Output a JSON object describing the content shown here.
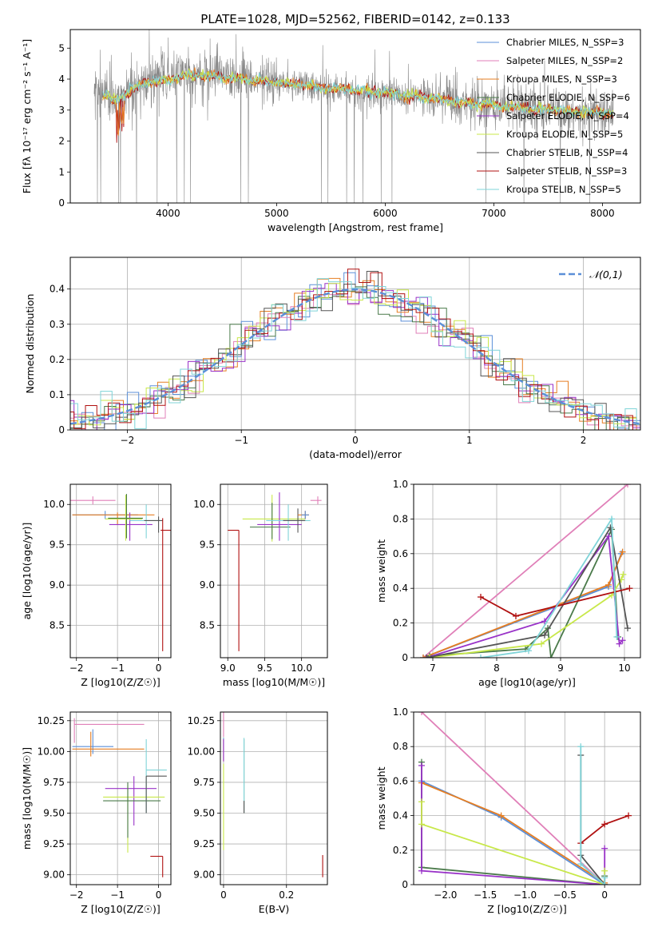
{
  "figure": {
    "title": "PLATE=1028, MJD=52562, FIBERID=0142, z=0.133"
  },
  "colors": {
    "chabrier_miles": "#5b8fd8",
    "salpeter_miles": "#e07fb8",
    "kroupa_miles": "#e67e22",
    "chabrier_elodie": "#4a7a4a",
    "salpeter_elodie": "#9932c8",
    "kroupa_elodie": "#c8e84a",
    "chabrier_stelib": "#555555",
    "salpeter_stelib": "#b01010",
    "kroupa_stelib": "#7fd4d8",
    "data": "#888888",
    "normal": "#5b8fd8"
  },
  "chart_data": [
    {
      "id": "spectrum",
      "type": "line",
      "title": "PLATE=1028, MJD=52562, FIBERID=0142, z=0.133",
      "xlabel": "wavelength [Angstrom, rest frame]",
      "ylabel": "Flux [fλ 10⁻¹⁷ erg cm⁻² s⁻¹ A⁻¹]",
      "xlim": [
        3100,
        8350
      ],
      "ylim": [
        0,
        5.6
      ],
      "xticks": [
        4000,
        5000,
        6000,
        7000,
        8000
      ],
      "yticks": [
        0,
        1,
        2,
        3,
        4,
        5
      ],
      "grid": false,
      "legend_position": "top-right",
      "continuum": {
        "x": [
          3320,
          3500,
          3800,
          4000,
          4200,
          4500,
          5000,
          5500,
          6000,
          6500,
          7000,
          7500,
          8100
        ],
        "y": [
          3.65,
          3.3,
          3.95,
          3.95,
          4.15,
          4.05,
          3.9,
          3.7,
          3.55,
          3.35,
          3.15,
          3.0,
          2.9
        ]
      },
      "data_wavelength_range": [
        3320,
        8100
      ],
      "legend": [
        {
          "name": "Chabrier MILES, N_SSP=3",
          "color_key": "chabrier_miles"
        },
        {
          "name": "Salpeter MILES, N_SSP=2",
          "color_key": "salpeter_miles"
        },
        {
          "name": "Kroupa MILES, N_SSP=3",
          "color_key": "kroupa_miles"
        },
        {
          "name": "Chabrier ELODIE, N_SSP=6",
          "color_key": "chabrier_elodie"
        },
        {
          "name": "Salpeter ELODIE, N_SSP=4",
          "color_key": "salpeter_elodie"
        },
        {
          "name": "Kroupa ELODIE, N_SSP=5",
          "color_key": "kroupa_elodie"
        },
        {
          "name": "Chabrier STELIB, N_SSP=4",
          "color_key": "chabrier_stelib"
        },
        {
          "name": "Salpeter STELIB, N_SSP=3",
          "color_key": "salpeter_stelib"
        },
        {
          "name": "Kroupa STELIB, N_SSP=5",
          "color_key": "kroupa_stelib"
        }
      ]
    },
    {
      "id": "residuals",
      "type": "step",
      "xlabel": "(data-model)/error",
      "ylabel": "Normed distribution",
      "xlim": [
        -2.5,
        2.5
      ],
      "ylim": [
        0,
        0.49
      ],
      "xticks": [
        -2,
        -1,
        0,
        1,
        2
      ],
      "yticks": [
        0.0,
        0.1,
        0.2,
        0.3,
        0.4
      ],
      "grid": true,
      "legend_position": "top-right",
      "normal_curve": {
        "name": "𝒩(0,1)",
        "mean": 0,
        "sigma": 1
      },
      "bin_width": 0.1
    },
    {
      "id": "age_vs_Z",
      "type": "errorbar",
      "xlabel": "Z [log10(Z/Z☉)]",
      "ylabel": "age  [log10(age/yr)]",
      "xlim": [
        -2.15,
        0.3
      ],
      "ylim": [
        8.1,
        10.25
      ],
      "xticks": [
        -2,
        -1,
        0
      ],
      "yticks": [
        8.5,
        9.0,
        9.5,
        10.0
      ],
      "grid": true,
      "points": [
        {
          "s": "salpeter_miles",
          "x": -1.6,
          "y": 10.05,
          "xe": [
            0.55,
            0.55
          ],
          "ye": [
            0.05,
            0.05
          ]
        },
        {
          "s": "chabrier_miles",
          "x": -1.3,
          "y": 9.87,
          "xe": [
            0.8,
            0.8
          ],
          "ye": [
            0.05,
            0.05
          ]
        },
        {
          "s": "kroupa_miles",
          "x": -1.0,
          "y": 9.87,
          "xe": [
            1.1,
            0.9
          ],
          "ye": [
            0.12,
            0.03
          ]
        },
        {
          "s": "salpeter_elodie",
          "x": -0.7,
          "y": 9.75,
          "xe": [
            0.5,
            0.55
          ],
          "ye": [
            0.2,
            0.15
          ]
        },
        {
          "s": "kroupa_elodie",
          "x": -0.8,
          "y": 9.82,
          "xe": [
            0.5,
            0.4
          ],
          "ye": [
            0.27,
            0.3
          ]
        },
        {
          "s": "chabrier_elodie",
          "x": -0.78,
          "y": 9.83,
          "xe": [
            0.45,
            0.4
          ],
          "ye": [
            0.25,
            0.3
          ]
        },
        {
          "s": "kroupa_stelib",
          "x": -0.3,
          "y": 9.8,
          "xe": [
            0.4,
            0.35
          ],
          "ye": [
            0.22,
            0.2
          ]
        },
        {
          "s": "chabrier_stelib",
          "x": 0.0,
          "y": 9.8,
          "xe": [
            0.35,
            0.1
          ],
          "ye": [
            0.15,
            0.05
          ]
        },
        {
          "s": "salpeter_stelib",
          "x": 0.1,
          "y": 9.68,
          "xe": [
            0.05,
            0.2
          ],
          "ye": [
            1.5,
            0.15
          ]
        }
      ]
    },
    {
      "id": "age_vs_mass",
      "type": "errorbar",
      "xlabel": "mass [log10(M/M☉)]",
      "ylabel": "",
      "xlim": [
        8.9,
        10.35
      ],
      "ylim": [
        8.1,
        10.25
      ],
      "xticks": [
        9.0,
        9.5,
        10.0
      ],
      "yticks": [
        8.5,
        9.0,
        9.5,
        10.0
      ],
      "grid": true,
      "points": [
        {
          "s": "salpeter_stelib",
          "x": 9.15,
          "y": 9.68,
          "xe": [
            0.15,
            0.0
          ],
          "ye": [
            1.5,
            0.0
          ]
        },
        {
          "s": "kroupa_elodie",
          "x": 9.6,
          "y": 9.82,
          "xe": [
            0.4,
            0.45
          ],
          "ye": [
            0.28,
            0.3
          ]
        },
        {
          "s": "chabrier_elodie",
          "x": 9.6,
          "y": 9.72,
          "xe": [
            0.3,
            0.25
          ],
          "ye": [
            0.15,
            0.3
          ]
        },
        {
          "s": "salpeter_elodie",
          "x": 9.7,
          "y": 9.75,
          "xe": [
            0.3,
            0.3
          ],
          "ye": [
            0.2,
            0.4
          ]
        },
        {
          "s": "kroupa_stelib",
          "x": 9.82,
          "y": 9.8,
          "xe": [
            0.3,
            0.3
          ],
          "ye": [
            0.25,
            0.2
          ]
        },
        {
          "s": "chabrier_stelib",
          "x": 9.95,
          "y": 9.8,
          "xe": [
            0.2,
            0.1
          ],
          "ye": [
            0.15,
            0.15
          ]
        },
        {
          "s": "kroupa_miles",
          "x": 10.05,
          "y": 9.87,
          "xe": [
            0.1,
            0.05
          ],
          "ye": [
            0.05,
            0.05
          ]
        },
        {
          "s": "chabrier_miles",
          "x": 10.05,
          "y": 9.87,
          "xe": [
            0.05,
            0.05
          ],
          "ye": [
            0.05,
            0.05
          ]
        },
        {
          "s": "salpeter_miles",
          "x": 10.22,
          "y": 10.05,
          "xe": [
            0.1,
            0.05
          ],
          "ye": [
            0.05,
            0.05
          ]
        }
      ]
    },
    {
      "id": "weight_vs_age",
      "type": "line",
      "xlabel": "age  [log10(age/yr)]",
      "ylabel": "mass weight",
      "xlim": [
        6.7,
        10.25
      ],
      "ylim": [
        0,
        1.0
      ],
      "xticks": [
        7,
        8,
        9,
        10
      ],
      "yticks": [
        0.0,
        0.2,
        0.4,
        0.6,
        0.8,
        1.0
      ],
      "grid": true,
      "series": [
        {
          "s": "salpeter_miles",
          "x": [
            6.85,
            10.05
          ],
          "y": [
            0.0,
            1.0
          ]
        },
        {
          "s": "chabrier_miles",
          "x": [
            6.85,
            9.75,
            9.95
          ],
          "y": [
            0.0,
            0.41,
            0.6
          ]
        },
        {
          "s": "kroupa_miles",
          "x": [
            6.85,
            9.75,
            9.97
          ],
          "y": [
            0.0,
            0.42,
            0.61
          ]
        },
        {
          "s": "chabrier_elodie",
          "x": [
            6.95,
            8.45,
            8.8,
            8.85,
            9.8,
            9.9
          ],
          "y": [
            0.01,
            0.05,
            0.17,
            0.0,
            0.74,
            0.12
          ]
        },
        {
          "s": "salpeter_elodie",
          "x": [
            6.9,
            8.75,
            9.75,
            9.92,
            9.97
          ],
          "y": [
            0.0,
            0.21,
            0.7,
            0.08,
            0.1
          ]
        },
        {
          "s": "kroupa_elodie",
          "x": [
            6.95,
            8.7,
            9.8,
            9.95,
            9.98
          ],
          "y": [
            0.0,
            0.08,
            0.36,
            0.45,
            0.48
          ]
        },
        {
          "s": "chabrier_stelib",
          "x": [
            6.9,
            8.75,
            9.78,
            10.05
          ],
          "y": [
            0.0,
            0.13,
            0.75,
            0.17
          ]
        },
        {
          "s": "salpeter_stelib",
          "x": [
            7.75,
            8.3,
            10.08
          ],
          "y": [
            0.35,
            0.24,
            0.4
          ]
        },
        {
          "s": "kroupa_stelib",
          "x": [
            7.75,
            8.5,
            9.8,
            9.88
          ],
          "y": [
            0.0,
            0.04,
            0.8,
            0.12
          ]
        }
      ]
    },
    {
      "id": "mass_vs_Z",
      "type": "errorbar",
      "xlabel": "Z [log10(Z/Z☉)]",
      "ylabel": "mass [log10(M/M☉)]",
      "xlim": [
        -2.15,
        0.3
      ],
      "ylim": [
        8.92,
        10.32
      ],
      "xticks": [
        -2,
        -1,
        0
      ],
      "yticks": [
        9.0,
        9.25,
        9.5,
        9.75,
        10.0,
        10.25
      ],
      "grid": true,
      "points": [
        {
          "s": "salpeter_miles",
          "x": -2.05,
          "y": 10.22,
          "xe": [
            0.0,
            1.7
          ],
          "ye": [
            0.15,
            0.05
          ]
        },
        {
          "s": "chabrier_miles",
          "x": -1.6,
          "y": 10.04,
          "xe": [
            0.5,
            0.5
          ],
          "ye": [
            0.06,
            0.14
          ]
        },
        {
          "s": "kroupa_miles",
          "x": -1.65,
          "y": 10.02,
          "xe": [
            0.45,
            1.3
          ],
          "ye": [
            0.06,
            0.14
          ]
        },
        {
          "s": "salpeter_elodie",
          "x": -0.6,
          "y": 9.7,
          "xe": [
            0.7,
            0.55
          ],
          "ye": [
            0.3,
            0.1
          ]
        },
        {
          "s": "kroupa_elodie",
          "x": -0.75,
          "y": 9.63,
          "xe": [
            0.6,
            0.9
          ],
          "ye": [
            0.45,
            0.1
          ]
        },
        {
          "s": "chabrier_elodie",
          "x": -0.75,
          "y": 9.6,
          "xe": [
            0.6,
            0.8
          ],
          "ye": [
            0.3,
            0.15
          ]
        },
        {
          "s": "kroupa_stelib",
          "x": -0.3,
          "y": 9.85,
          "xe": [
            0.0,
            0.5
          ],
          "ye": [
            0.35,
            0.25
          ]
        },
        {
          "s": "chabrier_stelib",
          "x": -0.3,
          "y": 9.8,
          "xe": [
            0.0,
            0.5
          ],
          "ye": [
            0.3,
            0.0
          ]
        },
        {
          "s": "salpeter_stelib",
          "x": 0.1,
          "y": 9.15,
          "xe": [
            0.3,
            0.0
          ],
          "ye": [
            0.17,
            0.0
          ]
        }
      ]
    },
    {
      "id": "mass_vs_EBV",
      "type": "errorbar",
      "xlabel": "E(B-V)",
      "ylabel": "",
      "xlim": [
        -0.01,
        0.33
      ],
      "ylim": [
        8.92,
        10.32
      ],
      "xticks": [
        0.0,
        0.2
      ],
      "yticks": [
        9.0,
        9.25,
        9.5,
        9.75,
        10.0,
        10.25
      ],
      "grid": true,
      "points": [
        {
          "s": "salpeter_miles",
          "x": 0.0,
          "y": 10.22,
          "ye": [
            0.1,
            0.1
          ]
        },
        {
          "s": "chabrier_miles",
          "x": 0.0,
          "y": 10.03,
          "ye": [
            0.1,
            0.08
          ]
        },
        {
          "s": "kroupa_miles",
          "x": 0.0,
          "y": 10.02,
          "ye": [
            0.1,
            0.08
          ]
        },
        {
          "s": "salpeter_elodie",
          "x": 0.0,
          "y": 10.02,
          "ye": [
            0.1,
            0.08
          ]
        },
        {
          "s": "kroupa_elodie",
          "x": 0.0,
          "y": 9.3,
          "ye": [
            0.1,
            0.6
          ]
        },
        {
          "s": "chabrier_elodie",
          "x": 0.065,
          "y": 9.8,
          "ye": [
            0.3,
            0.3
          ]
        },
        {
          "s": "kroupa_stelib",
          "x": 0.065,
          "y": 9.83,
          "ye": [
            0.33,
            0.28
          ]
        },
        {
          "s": "chabrier_stelib",
          "x": 0.065,
          "y": 9.55,
          "ye": [
            0.05,
            0.05
          ]
        },
        {
          "s": "salpeter_stelib",
          "x": 0.315,
          "y": 9.06,
          "ye": [
            0.08,
            0.1
          ]
        }
      ]
    },
    {
      "id": "weight_vs_Z",
      "type": "line",
      "xlabel": "Z [log10(Z/Z☉)]",
      "ylabel": "mass weight",
      "xlim": [
        -2.4,
        0.45
      ],
      "ylim": [
        0,
        1.0
      ],
      "xticks": [
        -2.0,
        -1.5,
        -1.0,
        -0.5,
        0.0
      ],
      "yticks": [
        0.0,
        0.2,
        0.4,
        0.6,
        0.8,
        1.0
      ],
      "grid": true,
      "series": [
        {
          "s": "salpeter_miles",
          "x": [
            -2.3,
            0.0
          ],
          "y": [
            1.0,
            0.0
          ]
        },
        {
          "s": "chabrier_miles",
          "x": [
            -2.3,
            -1.3,
            0.0
          ],
          "y": [
            0.6,
            0.39,
            0.0
          ]
        },
        {
          "s": "kroupa_miles",
          "x": [
            -2.3,
            -1.3,
            0.0
          ],
          "y": [
            0.59,
            0.4,
            0.01
          ]
        },
        {
          "s": "chabrier_elodie",
          "x": [
            -2.3,
            -2.3,
            0.0,
            0.0
          ],
          "y": [
            0.71,
            0.1,
            0.0,
            0.05
          ]
        },
        {
          "s": "salpeter_elodie",
          "x": [
            -2.3,
            -2.3,
            0.0,
            0.0
          ],
          "y": [
            0.69,
            0.08,
            0.0,
            0.21
          ]
        },
        {
          "s": "kroupa_elodie",
          "x": [
            -2.3,
            -2.3,
            0.0,
            0.0
          ],
          "y": [
            0.48,
            0.35,
            0.0,
            0.08
          ]
        },
        {
          "s": "chabrier_stelib",
          "x": [
            -0.3,
            -0.3,
            0.0
          ],
          "y": [
            0.75,
            0.17,
            0.0
          ]
        },
        {
          "s": "salpeter_stelib",
          "x": [
            -0.3,
            0.0,
            0.3
          ],
          "y": [
            0.24,
            0.35,
            0.4
          ]
        },
        {
          "s": "kroupa_stelib",
          "x": [
            -0.3,
            -0.3,
            0.0,
            0.0
          ],
          "y": [
            0.8,
            0.12,
            0.0,
            0.04
          ]
        }
      ]
    }
  ]
}
